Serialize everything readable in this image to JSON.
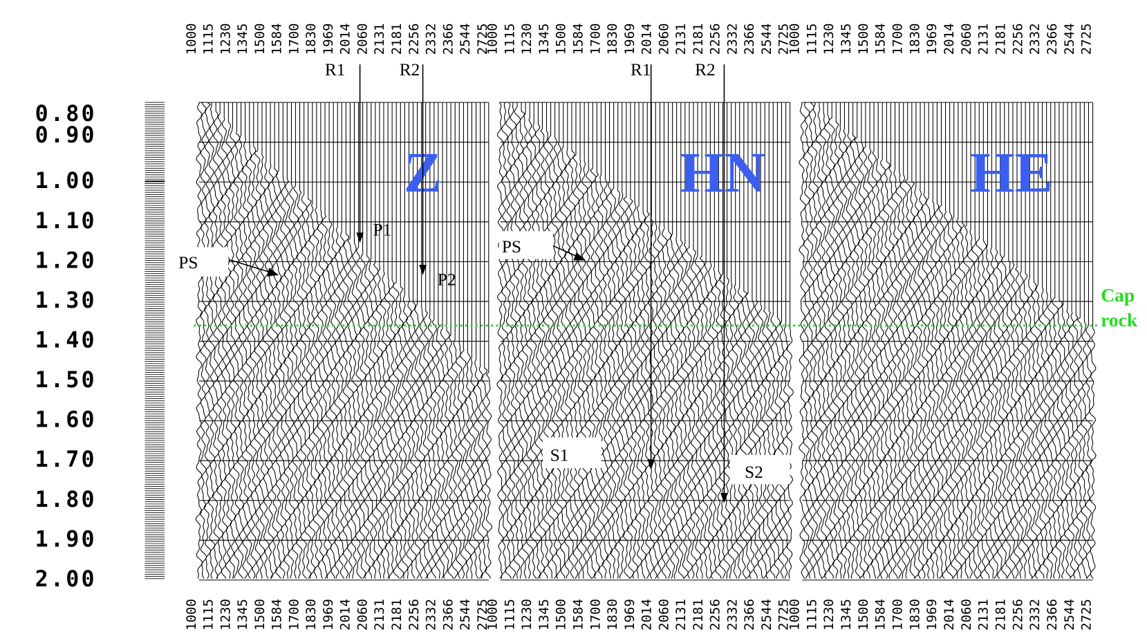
{
  "time_labels": [
    "0.80",
    "0.90",
    "1.00",
    "1.10",
    "1.20",
    "1.30",
    "1.40",
    "1.50",
    "1.60",
    "1.70",
    "1.80",
    "1.90",
    "2.00"
  ],
  "trace_labels": [
    "1000",
    "1115",
    "1230",
    "1345",
    "1500",
    "1584",
    "1700",
    "1830",
    "1969",
    "2014",
    "2060",
    "2131",
    "2181",
    "2256",
    "2332",
    "2366",
    "2544",
    "2725"
  ],
  "panels": [
    {
      "label": "Z",
      "annotations": [
        "R1",
        "R2",
        "P1",
        "P2",
        "PS"
      ]
    },
    {
      "label": "HN",
      "annotations": [
        "R1",
        "R2",
        "PS",
        "S1",
        "S2"
      ]
    },
    {
      "label": "HE"
    }
  ],
  "cap_rock": [
    "Cap",
    "rock"
  ]
}
